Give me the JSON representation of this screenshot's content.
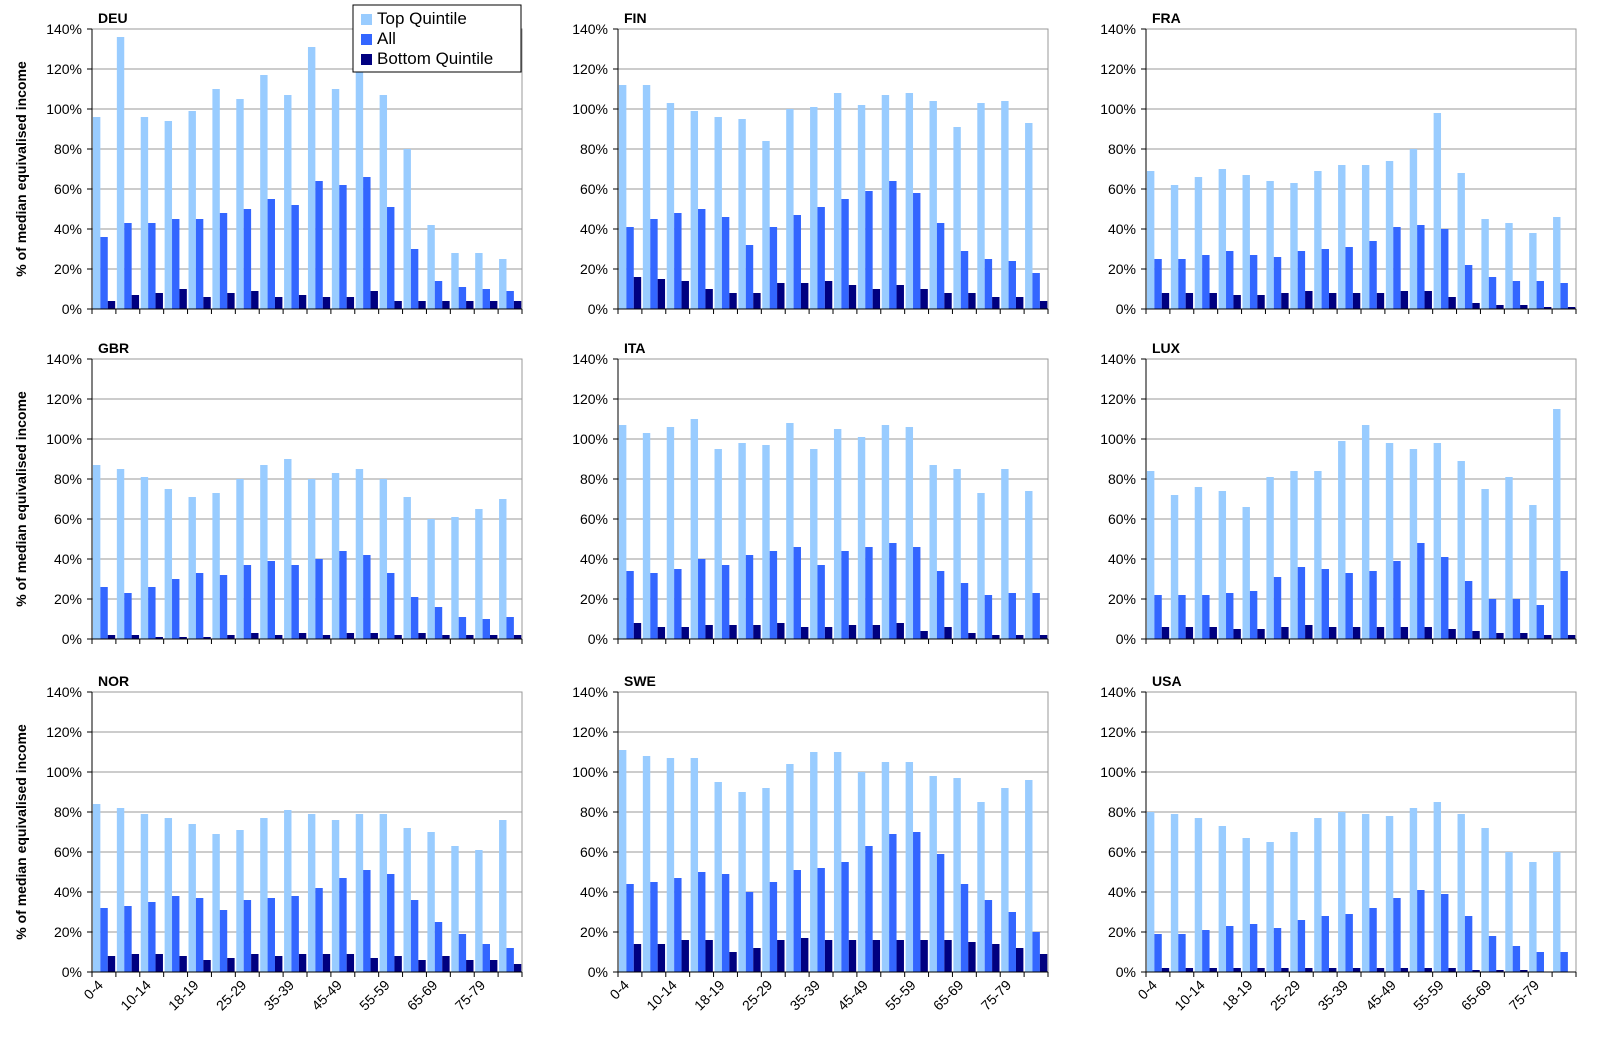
{
  "chart_data": [
    {
      "type": "bar",
      "title": "DEU",
      "y_label": "% of median equivalised income",
      "legend": "top-right",
      "ylim": [
        0,
        140
      ],
      "yticks": [
        {
          "value": 0,
          "label": "0%"
        },
        {
          "value": 20,
          "label": "20%"
        },
        {
          "value": 40,
          "label": "40%"
        },
        {
          "value": 60,
          "label": "60%"
        },
        {
          "value": 80,
          "label": "80%"
        },
        {
          "value": 100,
          "label": "100%"
        },
        {
          "value": 120,
          "label": "120%"
        },
        {
          "value": 140,
          "label": "140%"
        }
      ],
      "grid": true,
      "series": [
        {
          "name": "Top Quintile",
          "color": "#99ccff",
          "values": [
            96,
            136,
            96,
            94,
            99,
            110,
            105,
            117,
            107,
            131,
            110,
            122,
            107,
            80,
            42,
            28,
            28,
            25
          ]
        },
        {
          "name": "All",
          "color": "#3366ff",
          "values": [
            36,
            43,
            43,
            45,
            45,
            48,
            50,
            55,
            52,
            64,
            62,
            66,
            51,
            30,
            14,
            11,
            10,
            9
          ]
        },
        {
          "name": "Bottom Quintile",
          "color": "#000080",
          "values": [
            4,
            7,
            8,
            10,
            6,
            8,
            9,
            6,
            7,
            6,
            6,
            9,
            4,
            4,
            4,
            4,
            4,
            4
          ]
        }
      ]
    },
    {
      "type": "bar",
      "title": "FIN",
      "ylim": [
        0,
        140
      ],
      "yticks": [
        {
          "value": 0,
          "label": "0%"
        },
        {
          "value": 20,
          "label": "20%"
        },
        {
          "value": 40,
          "label": "40%"
        },
        {
          "value": 60,
          "label": "60%"
        },
        {
          "value": 80,
          "label": "80%"
        },
        {
          "value": 100,
          "label": "100%"
        },
        {
          "value": 120,
          "label": "120%"
        },
        {
          "value": 140,
          "label": "140%"
        }
      ],
      "grid": true,
      "series": [
        {
          "color": "#99ccff",
          "values": [
            112,
            112,
            103,
            99,
            96,
            95,
            84,
            100,
            101,
            108,
            102,
            107,
            108,
            104,
            91,
            103,
            104,
            93
          ]
        },
        {
          "color": "#3366ff",
          "values": [
            41,
            45,
            48,
            50,
            46,
            32,
            41,
            47,
            51,
            55,
            59,
            64,
            58,
            43,
            29,
            25,
            24,
            18
          ]
        },
        {
          "color": "#000080",
          "values": [
            16,
            15,
            14,
            10,
            8,
            8,
            13,
            13,
            14,
            12,
            10,
            12,
            10,
            8,
            8,
            6,
            6,
            4
          ]
        }
      ]
    },
    {
      "type": "bar",
      "title": "FRA",
      "ylim": [
        0,
        140
      ],
      "yticks": [
        {
          "value": 0,
          "label": "0%"
        },
        {
          "value": 20,
          "label": "20%"
        },
        {
          "value": 40,
          "label": "40%"
        },
        {
          "value": 60,
          "label": "60%"
        },
        {
          "value": 80,
          "label": "80%"
        },
        {
          "value": 100,
          "label": "100%"
        },
        {
          "value": 120,
          "label": "120%"
        },
        {
          "value": 140,
          "label": "140%"
        }
      ],
      "grid": true,
      "series": [
        {
          "color": "#99ccff",
          "values": [
            69,
            62,
            66,
            70,
            67,
            64,
            63,
            69,
            72,
            72,
            74,
            80,
            98,
            68,
            45,
            43,
            38,
            46
          ]
        },
        {
          "color": "#3366ff",
          "values": [
            25,
            25,
            27,
            29,
            27,
            26,
            29,
            30,
            31,
            34,
            41,
            42,
            40,
            22,
            16,
            14,
            14,
            13
          ]
        },
        {
          "color": "#000080",
          "values": [
            8,
            8,
            8,
            7,
            7,
            8,
            9,
            8,
            8,
            8,
            9,
            9,
            6,
            3,
            2,
            2,
            1,
            1
          ]
        }
      ]
    },
    {
      "type": "bar",
      "title": "GBR",
      "y_label": "% of median equivalised income",
      "ylim": [
        0,
        140
      ],
      "yticks": [
        {
          "value": 0,
          "label": "0%"
        },
        {
          "value": 20,
          "label": "20%"
        },
        {
          "value": 40,
          "label": "40%"
        },
        {
          "value": 60,
          "label": "60%"
        },
        {
          "value": 80,
          "label": "80%"
        },
        {
          "value": 100,
          "label": "100%"
        },
        {
          "value": 120,
          "label": "120%"
        },
        {
          "value": 140,
          "label": "140%"
        }
      ],
      "grid": true,
      "series": [
        {
          "color": "#99ccff",
          "values": [
            87,
            85,
            81,
            75,
            71,
            73,
            80,
            87,
            90,
            80,
            83,
            85,
            80,
            71,
            60,
            61,
            65,
            70
          ]
        },
        {
          "color": "#3366ff",
          "values": [
            26,
            23,
            26,
            30,
            33,
            32,
            37,
            39,
            37,
            40,
            44,
            42,
            33,
            21,
            16,
            11,
            10,
            11
          ]
        },
        {
          "color": "#000080",
          "values": [
            2,
            2,
            1,
            1,
            1,
            2,
            3,
            2,
            3,
            2,
            3,
            3,
            2,
            3,
            2,
            2,
            2,
            2
          ]
        }
      ]
    },
    {
      "type": "bar",
      "title": "ITA",
      "ylim": [
        0,
        140
      ],
      "yticks": [
        {
          "value": 0,
          "label": "0%"
        },
        {
          "value": 20,
          "label": "20%"
        },
        {
          "value": 40,
          "label": "40%"
        },
        {
          "value": 60,
          "label": "60%"
        },
        {
          "value": 80,
          "label": "80%"
        },
        {
          "value": 100,
          "label": "100%"
        },
        {
          "value": 120,
          "label": "120%"
        },
        {
          "value": 140,
          "label": "140%"
        }
      ],
      "grid": true,
      "series": [
        {
          "color": "#99ccff",
          "values": [
            107,
            103,
            106,
            110,
            95,
            98,
            97,
            108,
            95,
            105,
            101,
            107,
            106,
            87,
            85,
            73,
            85,
            74
          ]
        },
        {
          "color": "#3366ff",
          "values": [
            34,
            33,
            35,
            40,
            37,
            42,
            44,
            46,
            37,
            44,
            46,
            48,
            46,
            34,
            28,
            22,
            23,
            23
          ]
        },
        {
          "color": "#000080",
          "values": [
            8,
            6,
            6,
            7,
            7,
            7,
            8,
            6,
            6,
            7,
            7,
            8,
            4,
            6,
            3,
            2,
            2,
            2
          ]
        }
      ]
    },
    {
      "type": "bar",
      "title": "LUX",
      "ylim": [
        0,
        140
      ],
      "yticks": [
        {
          "value": 0,
          "label": "0%"
        },
        {
          "value": 20,
          "label": "20%"
        },
        {
          "value": 40,
          "label": "40%"
        },
        {
          "value": 60,
          "label": "60%"
        },
        {
          "value": 80,
          "label": "80%"
        },
        {
          "value": 100,
          "label": "100%"
        },
        {
          "value": 120,
          "label": "120%"
        },
        {
          "value": 140,
          "label": "140%"
        }
      ],
      "grid": true,
      "series": [
        {
          "color": "#99ccff",
          "values": [
            84,
            72,
            76,
            74,
            66,
            81,
            84,
            84,
            99,
            107,
            98,
            95,
            98,
            89,
            75,
            81,
            67,
            115
          ]
        },
        {
          "color": "#3366ff",
          "values": [
            22,
            22,
            22,
            23,
            24,
            31,
            36,
            35,
            33,
            34,
            39,
            48,
            41,
            29,
            20,
            20,
            17,
            34
          ]
        },
        {
          "color": "#000080",
          "values": [
            6,
            6,
            6,
            5,
            5,
            6,
            7,
            6,
            6,
            6,
            6,
            6,
            5,
            4,
            3,
            3,
            2,
            2
          ]
        }
      ]
    },
    {
      "type": "bar",
      "title": "NOR",
      "y_label": "% of median equivalised income",
      "categories": [
        "0-4",
        null,
        "10-14",
        null,
        "18-19",
        null,
        "25-29",
        null,
        "35-39",
        null,
        "45-49",
        null,
        "55-59",
        null,
        "65-69",
        null,
        "75-79",
        null
      ],
      "ylim": [
        0,
        140
      ],
      "yticks": [
        {
          "value": 0,
          "label": "0%"
        },
        {
          "value": 20,
          "label": "20%"
        },
        {
          "value": 40,
          "label": "40%"
        },
        {
          "value": 60,
          "label": "60%"
        },
        {
          "value": 80,
          "label": "80%"
        },
        {
          "value": 100,
          "label": "100%"
        },
        {
          "value": 120,
          "label": "120%"
        },
        {
          "value": 140,
          "label": "140%"
        }
      ],
      "grid": true,
      "series": [
        {
          "color": "#99ccff",
          "values": [
            84,
            82,
            79,
            77,
            74,
            69,
            71,
            77,
            81,
            79,
            76,
            79,
            79,
            72,
            70,
            63,
            61,
            76
          ]
        },
        {
          "color": "#3366ff",
          "values": [
            32,
            33,
            35,
            38,
            37,
            31,
            36,
            37,
            38,
            42,
            47,
            51,
            49,
            36,
            25,
            19,
            14,
            12
          ]
        },
        {
          "color": "#000080",
          "values": [
            8,
            9,
            9,
            8,
            6,
            7,
            9,
            8,
            9,
            9,
            9,
            7,
            8,
            6,
            8,
            6,
            6,
            4
          ]
        }
      ]
    },
    {
      "type": "bar",
      "title": "SWE",
      "categories": [
        "0-4",
        null,
        "10-14",
        null,
        "18-19",
        null,
        "25-29",
        null,
        "35-39",
        null,
        "45-49",
        null,
        "55-59",
        null,
        "65-69",
        null,
        "75-79",
        null
      ],
      "ylim": [
        0,
        140
      ],
      "yticks": [
        {
          "value": 0,
          "label": "0%"
        },
        {
          "value": 20,
          "label": "20%"
        },
        {
          "value": 40,
          "label": "40%"
        },
        {
          "value": 60,
          "label": "60%"
        },
        {
          "value": 80,
          "label": "80%"
        },
        {
          "value": 100,
          "label": "100%"
        },
        {
          "value": 120,
          "label": "120%"
        },
        {
          "value": 140,
          "label": "140%"
        }
      ],
      "grid": true,
      "series": [
        {
          "color": "#99ccff",
          "values": [
            111,
            108,
            107,
            107,
            95,
            90,
            92,
            104,
            110,
            110,
            100,
            105,
            105,
            98,
            97,
            85,
            92,
            96
          ]
        },
        {
          "color": "#3366ff",
          "values": [
            44,
            45,
            47,
            50,
            49,
            40,
            45,
            51,
            52,
            55,
            63,
            69,
            70,
            59,
            44,
            36,
            30,
            20
          ]
        },
        {
          "color": "#000080",
          "values": [
            14,
            14,
            16,
            16,
            10,
            12,
            16,
            17,
            16,
            16,
            16,
            16,
            16,
            16,
            15,
            14,
            12,
            9
          ]
        }
      ]
    },
    {
      "type": "bar",
      "title": "USA",
      "categories": [
        "0-4",
        null,
        "10-14",
        null,
        "18-19",
        null,
        "25-29",
        null,
        "35-39",
        null,
        "45-49",
        null,
        "55-59",
        null,
        "65-69",
        null,
        "75-79",
        null
      ],
      "ylim": [
        0,
        140
      ],
      "yticks": [
        {
          "value": 0,
          "label": "0%"
        },
        {
          "value": 20,
          "label": "20%"
        },
        {
          "value": 40,
          "label": "40%"
        },
        {
          "value": 60,
          "label": "60%"
        },
        {
          "value": 80,
          "label": "80%"
        },
        {
          "value": 100,
          "label": "100%"
        },
        {
          "value": 120,
          "label": "120%"
        },
        {
          "value": 140,
          "label": "140%"
        }
      ],
      "grid": true,
      "series": [
        {
          "color": "#99ccff",
          "values": [
            80,
            79,
            77,
            73,
            67,
            65,
            70,
            77,
            80,
            79,
            78,
            82,
            85,
            79,
            72,
            60,
            55,
            60
          ]
        },
        {
          "color": "#3366ff",
          "values": [
            19,
            19,
            21,
            23,
            24,
            22,
            26,
            28,
            29,
            32,
            37,
            41,
            39,
            28,
            18,
            13,
            10,
            10
          ]
        },
        {
          "color": "#000080",
          "values": [
            2,
            2,
            2,
            2,
            2,
            2,
            2,
            2,
            2,
            2,
            2,
            2,
            2,
            1,
            1,
            1,
            0,
            0
          ]
        }
      ]
    }
  ]
}
